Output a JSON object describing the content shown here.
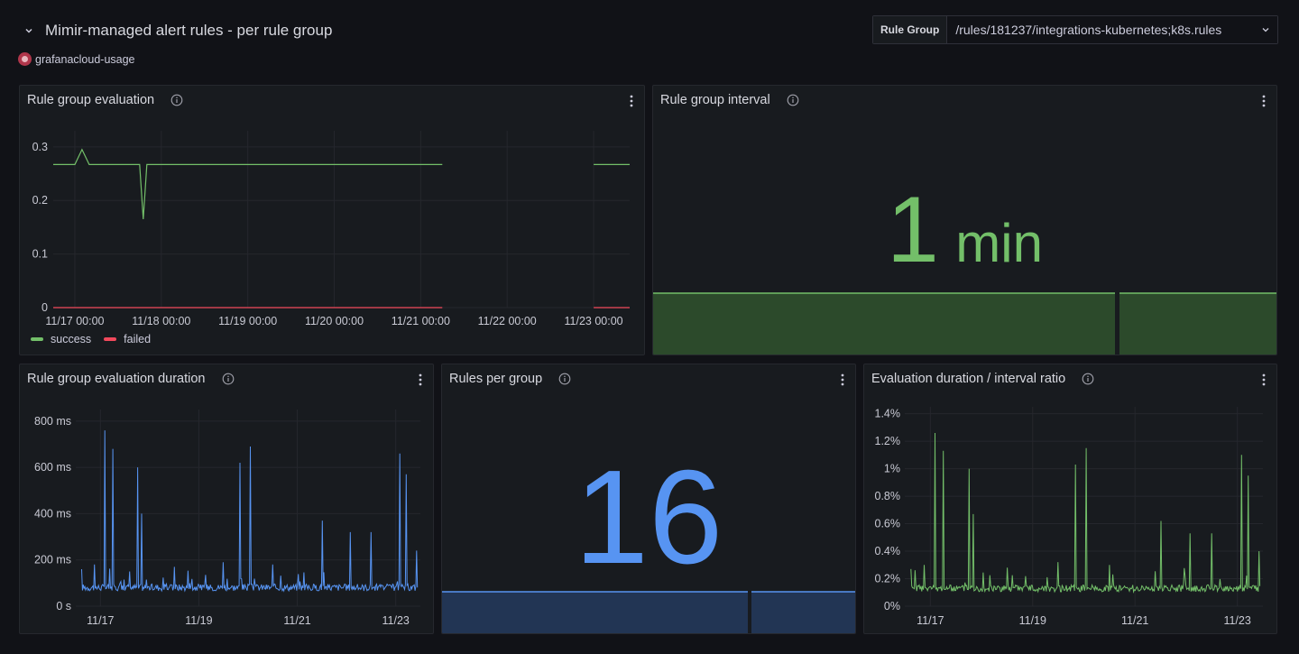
{
  "row": {
    "title": "Mimir-managed alert rules - per rule group"
  },
  "datasource": {
    "name": "grafanacloud-usage"
  },
  "variable": {
    "label": "Rule Group",
    "value": "/rules/181237/integrations-kubernetes;k8s.rules"
  },
  "panels": {
    "evaluation": {
      "title": "Rule group evaluation",
      "y_ticks": [
        "0.3",
        "0.2",
        "0.1",
        "0"
      ],
      "x_ticks": [
        "11/17 00:00",
        "11/18 00:00",
        "11/19 00:00",
        "11/20 00:00",
        "11/21 00:00",
        "11/22 00:00",
        "11/23 00:00"
      ],
      "legend": [
        {
          "name": "success",
          "color": "#73bf69"
        },
        {
          "name": "failed",
          "color": "#f2495c"
        }
      ]
    },
    "interval": {
      "title": "Rule group interval",
      "value": "1",
      "unit": "min",
      "color": "#73bf69"
    },
    "duration": {
      "title": "Rule group evaluation duration",
      "y_ticks": [
        "800 ms",
        "600 ms",
        "400 ms",
        "200 ms",
        "0 s"
      ],
      "x_ticks": [
        "11/17",
        "11/19",
        "11/21",
        "11/23"
      ],
      "color": "#5794f2"
    },
    "rules": {
      "title": "Rules per group",
      "value": "16",
      "color": "#5794f2"
    },
    "ratio": {
      "title": "Evaluation duration / interval ratio",
      "y_ticks": [
        "1.4%",
        "1.2%",
        "1%",
        "0.8%",
        "0.6%",
        "0.4%",
        "0.2%",
        "0%"
      ],
      "x_ticks": [
        "11/17",
        "11/19",
        "11/21",
        "11/23"
      ],
      "color": "#73bf69"
    }
  },
  "chart_data": [
    {
      "type": "line",
      "title": "Rule group evaluation",
      "x": [
        "11/16 18:00",
        "11/17 00:00",
        "11/17 02:00",
        "11/17 04:00",
        "11/17 18:00",
        "11/17 19:00",
        "11/17 20:00",
        "11/18 00:00",
        "11/21 00:00",
        "11/21 06:00",
        "11/21 06:30",
        "11/23 00:00",
        "11/23 10:00"
      ],
      "series": [
        {
          "name": "success",
          "values": [
            0.267,
            0.267,
            0.295,
            0.267,
            0.267,
            0.165,
            0.267,
            0.267,
            0.267,
            0.267,
            null,
            0.267,
            0.267
          ]
        },
        {
          "name": "failed",
          "values": [
            0,
            0,
            0,
            0,
            0,
            0,
            0,
            0,
            0,
            0,
            null,
            0,
            0
          ]
        }
      ],
      "ylim": [
        0,
        0.33
      ],
      "grid": true,
      "legend": "bottom-left"
    },
    {
      "type": "line",
      "title": "Rule group evaluation duration",
      "x": [
        "11/16 12:00",
        "11/16 21:00",
        "11/17 02:00",
        "11/17 06:00",
        "11/17 18:00",
        "11/17 20:00",
        "11/18 12:00",
        "11/19 12:00",
        "11/19 20:00",
        "11/20 01:00",
        "11/20 12:00",
        "11/21 12:00",
        "11/22 02:00",
        "11/22 12:00",
        "11/23 02:00",
        "11/23 05:00",
        "11/23 10:00"
      ],
      "series": [
        {
          "name": "",
          "values": [
            160,
            180,
            760,
            680,
            600,
            400,
            170,
            190,
            620,
            690,
            180,
            370,
            320,
            320,
            660,
            570,
            240
          ]
        }
      ],
      "baseline_ms": 75,
      "ylim": [
        0,
        850
      ],
      "grid": true
    },
    {
      "type": "line",
      "title": "Evaluation duration / interval ratio",
      "x": [
        "11/16 12:00",
        "11/16 21:00",
        "11/17 02:00",
        "11/17 06:00",
        "11/17 18:00",
        "11/17 20:00",
        "11/18 12:00",
        "11/19 12:00",
        "11/19 20:00",
        "11/20 01:00",
        "11/20 12:00",
        "11/21 12:00",
        "11/22 02:00",
        "11/22 12:00",
        "11/23 02:00",
        "11/23 05:00",
        "11/23 10:00"
      ],
      "series": [
        {
          "name": "",
          "values": [
            0.27,
            0.3,
            1.26,
            1.13,
            1.0,
            0.67,
            0.28,
            0.32,
            1.03,
            1.15,
            0.3,
            0.62,
            0.53,
            0.53,
            1.1,
            0.95,
            0.4
          ]
        }
      ],
      "baseline_percent": 0.12,
      "ylim": [
        0,
        1.45
      ],
      "grid": true
    }
  ]
}
